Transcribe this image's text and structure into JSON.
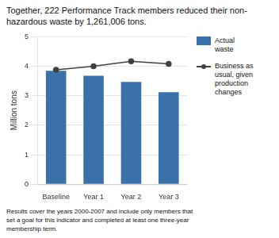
{
  "chart_data": {
    "type": "bar",
    "title": "Together, 222 Performance Track members reduced their non-hazardous waste by 1,261,006 tons.",
    "categories": [
      "Baseline",
      "Year 1",
      "Year 2",
      "Year 3"
    ],
    "series": [
      {
        "name": "Actual\nwaste",
        "type": "bar",
        "color": "#3a71a8",
        "values": [
          3.85,
          3.68,
          3.47,
          3.12
        ]
      },
      {
        "name": "Business as\nusual, given\nproduction\nchanges",
        "type": "line",
        "marker": "circle",
        "color": "#404040",
        "values": [
          3.88,
          4.0,
          4.17,
          4.08
        ]
      }
    ],
    "ylabel": "Million tons",
    "ylim": [
      0,
      5
    ],
    "yticks": [
      0,
      1,
      2,
      3,
      4,
      5
    ],
    "grid": true,
    "legend": "right",
    "annotations": [
      "Results cover the years 2000-2007 and include only members that\nset a goal for this indicator and completed at least one three-year\nmembership term."
    ]
  }
}
